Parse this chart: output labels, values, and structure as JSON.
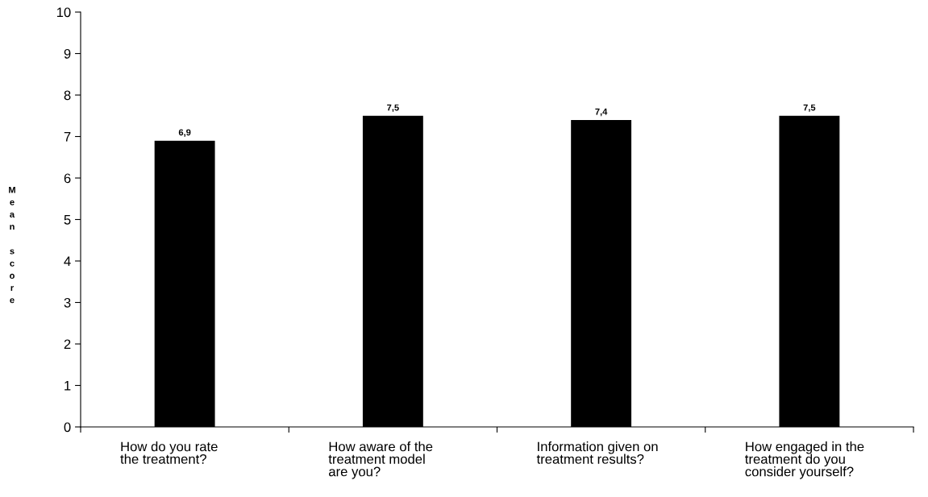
{
  "chart_data": {
    "type": "bar",
    "ylabel": "Mean score",
    "categories": [
      "How do you rate\nthe treatment?",
      "How aware of the\ntreatment model\nare you?",
      "Information given on\ntreatment results?",
      "How engaged in the\ntreatment do you\nconsider yourself?"
    ],
    "values": [
      6.9,
      7.5,
      7.4,
      7.5
    ],
    "value_labels": [
      "6,9",
      "7,5",
      "7,4",
      "7,5"
    ],
    "color": "#000000",
    "ylim": [
      0,
      10
    ],
    "yticks": [
      0,
      1,
      2,
      3,
      4,
      5,
      6,
      7,
      8,
      9,
      10
    ],
    "grid": false,
    "legend": false
  }
}
